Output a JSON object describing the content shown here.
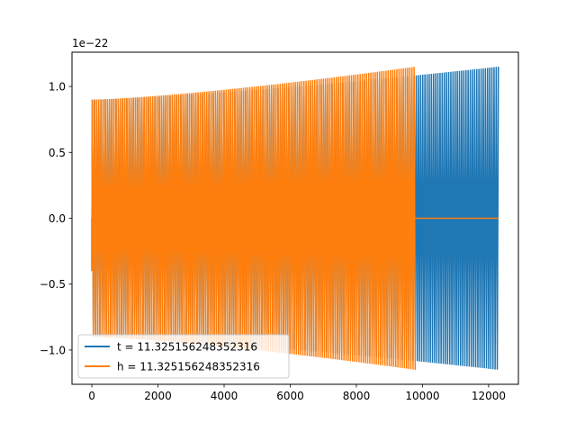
{
  "chart_data": {
    "type": "line",
    "title": "",
    "xlabel": "",
    "ylabel": "",
    "y_offset_text": "1e−22",
    "xlim": [
      -600,
      12900
    ],
    "ylim": [
      -1.26e-22,
      1.26e-22
    ],
    "xticks": [
      0,
      2000,
      4000,
      6000,
      8000,
      10000,
      12000
    ],
    "xtick_labels": [
      "0",
      "2000",
      "4000",
      "6000",
      "8000",
      "10000",
      "12000"
    ],
    "yticks": [
      -1e-22,
      -5e-23,
      0,
      5e-23,
      1e-22
    ],
    "ytick_labels": [
      "−1.0",
      "−0.5",
      "0.0",
      "0.5",
      "1.0"
    ],
    "grid": false,
    "legend_position": "lower-left",
    "series": [
      {
        "name": "t = 11.325156248352316",
        "color": "#1f77b4",
        "x_range": [
          0,
          12300
        ],
        "envelope_start": 9e-23,
        "envelope_end": 1.15e-22,
        "zero_tail_start": null
      },
      {
        "name": "h = 11.325156248352316",
        "color": "#ff7f0e",
        "x_range": [
          0,
          9780
        ],
        "envelope_start": 9e-23,
        "envelope_end": 1.15e-22,
        "zero_tail_start": 9780,
        "zero_tail_end": 12300
      }
    ]
  }
}
